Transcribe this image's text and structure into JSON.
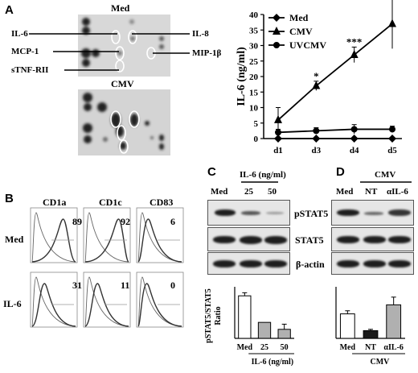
{
  "panel_labels": {
    "a": "A",
    "b": "B",
    "c": "C",
    "d": "D"
  },
  "panel_a": {
    "array_top_title": "Med",
    "array_bottom_title": "CMV",
    "array_labels": [
      "IL-6",
      "MCP-1",
      "sTNF-RII",
      "IL-8",
      "MIP-1β"
    ]
  },
  "chart_data": [
    {
      "type": "line",
      "title": "",
      "ylabel": "IL-6 (ng/ml)",
      "xlabel": "",
      "categories": [
        "d1",
        "d3",
        "d4",
        "d5"
      ],
      "ylim": [
        0,
        40
      ],
      "yticks": [
        "0",
        "5",
        "10",
        "15",
        "20",
        "25",
        "30",
        "35",
        "40"
      ],
      "legend_position": "top-left",
      "series": [
        {
          "name": "Med",
          "marker": "diamond",
          "values": [
            0,
            0,
            0,
            0
          ]
        },
        {
          "name": "CMV",
          "marker": "triangle",
          "values": [
            6,
            17,
            27,
            37
          ],
          "errors": [
            4,
            1.5,
            2.5,
            8
          ]
        },
        {
          "name": "UVCMV",
          "marker": "circle",
          "values": [
            2,
            2.5,
            3,
            3
          ],
          "errors": [
            1,
            1,
            1.5,
            1
          ]
        }
      ],
      "annotations": [
        {
          "x": "d3",
          "text": "*"
        },
        {
          "x": "d4",
          "text": "***"
        },
        {
          "x": "d5",
          "text": "**"
        }
      ]
    },
    {
      "type": "bar",
      "title": "",
      "ylabel": "pSTAT5/STAT5\nRatio",
      "xlabel": "IL-6 (ng/ml)",
      "categories": [
        "Med",
        "25",
        "50"
      ],
      "ylim": [
        0,
        2
      ],
      "values": [
        1.65,
        0.62,
        0.35
      ],
      "errors": [
        0.12,
        0.0,
        0.2
      ],
      "colors": [
        "#ffffff",
        "#b0b0b0",
        "#b0b0b0"
      ]
    },
    {
      "type": "bar",
      "title": "",
      "ylabel": "",
      "xlabel": "CMV",
      "categories": [
        "Med",
        "NT",
        "αIL-6"
      ],
      "ylim": [
        0,
        2
      ],
      "values": [
        0.95,
        0.3,
        1.3
      ],
      "errors": [
        0.12,
        0.05,
        0.3
      ],
      "colors": [
        "#ffffff",
        "#1a1a1a",
        "#b0b0b0"
      ]
    }
  ],
  "panel_b": {
    "columns": [
      "CD1a",
      "CD1c",
      "CD83"
    ],
    "rows": [
      "Med",
      "IL-6"
    ],
    "values": [
      [
        "89",
        "92",
        "6"
      ],
      [
        "31",
        "11",
        "0"
      ]
    ]
  },
  "panel_c": {
    "header": "IL-6 (ng/ml)",
    "lanes": [
      "Med",
      "25",
      "50"
    ],
    "rows": [
      "pSTAT5",
      "STAT5",
      "β-actin"
    ]
  },
  "panel_d": {
    "header": "CMV",
    "lanes": [
      "Med",
      "NT",
      "αIL-6"
    ]
  }
}
